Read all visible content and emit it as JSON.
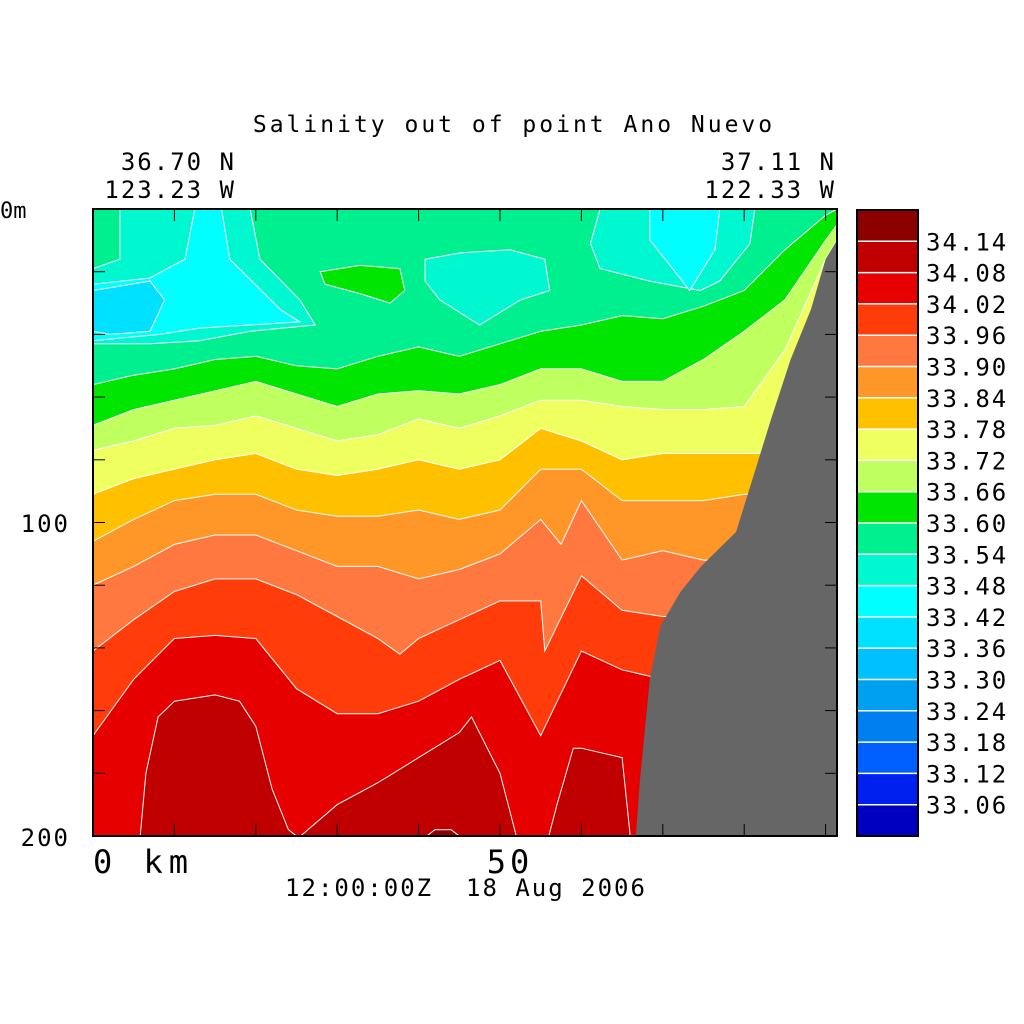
{
  "chart_data": {
    "type": "heatmap",
    "subtype": "filled-contour section",
    "title": "Salinity out of point Ano Nuevo",
    "start_location": {
      "lat": "36.70 N",
      "lon": "123.23 W"
    },
    "end_location": {
      "lat": "37.11 N",
      "lon": "122.33 W"
    },
    "timestamp": "12:00:00Z  18 Aug 2006",
    "xlabel": "km",
    "x_tick_labels": [
      {
        "value": 0,
        "label": "0 km"
      },
      {
        "value": 50,
        "label": "50"
      }
    ],
    "y_tick_labels": [
      {
        "value": 0,
        "label": "0m"
      },
      {
        "value": 100,
        "label": "100"
      },
      {
        "value": 200,
        "label": "200"
      }
    ],
    "xlim": [
      0,
      91.4
    ],
    "ylim": [
      0,
      200
    ],
    "y_inverted": true,
    "x_minor_step": 10,
    "y_minor_step": 20,
    "levels": [
      "34.14",
      "34.08",
      "34.02",
      "33.96",
      "33.90",
      "33.84",
      "33.78",
      "33.72",
      "33.66",
      "33.60",
      "33.54",
      "33.48",
      "33.42",
      "33.36",
      "33.30",
      "33.24",
      "33.18",
      "33.12",
      "33.06"
    ],
    "colors": [
      "#8c0000",
      "#c00000",
      "#e60000",
      "#ff3c0a",
      "#ff7840",
      "#ff9628",
      "#ffc000",
      "#f0ff60",
      "#c0ff60",
      "#00e600",
      "#00f090",
      "#00f8d0",
      "#00ffff",
      "#00e0ff",
      "#00c0ff",
      "#00a0f0",
      "#0080f0",
      "#0060ff",
      "#0020f0",
      "#0000c0"
    ],
    "surface_fill": "33.54",
    "boundaries": [
      {
        "level": "33.60",
        "color": "#00e600",
        "points": [
          [
            0,
            56
          ],
          [
            5,
            53
          ],
          [
            10,
            51
          ],
          [
            15,
            48
          ],
          [
            20,
            47
          ],
          [
            25,
            50
          ],
          [
            30,
            51
          ],
          [
            35,
            47
          ],
          [
            40,
            44
          ],
          [
            45,
            47
          ],
          [
            50,
            43
          ],
          [
            55,
            39
          ],
          [
            60,
            37
          ],
          [
            65,
            34
          ],
          [
            70,
            35
          ],
          [
            75,
            31
          ],
          [
            80,
            26
          ],
          [
            85,
            13
          ],
          [
            90,
            2
          ],
          [
            91.4,
            0
          ]
        ]
      },
      {
        "level": "33.66",
        "color": "#c0ff60",
        "points": [
          [
            0,
            69
          ],
          [
            5,
            64
          ],
          [
            10,
            61
          ],
          [
            15,
            58
          ],
          [
            20,
            55
          ],
          [
            25,
            59
          ],
          [
            30,
            63
          ],
          [
            35,
            59
          ],
          [
            40,
            58
          ],
          [
            45,
            59
          ],
          [
            50,
            56
          ],
          [
            55,
            51
          ],
          [
            60,
            51
          ],
          [
            65,
            55
          ],
          [
            70,
            55
          ],
          [
            75,
            48
          ],
          [
            80,
            39
          ],
          [
            85,
            29
          ],
          [
            90,
            10
          ],
          [
            91.4,
            5
          ]
        ]
      },
      {
        "level": "33.72",
        "color": "#f0ff60",
        "points": [
          [
            0,
            77
          ],
          [
            5,
            74
          ],
          [
            10,
            70
          ],
          [
            15,
            69
          ],
          [
            20,
            66
          ],
          [
            25,
            70
          ],
          [
            30,
            74
          ],
          [
            35,
            72
          ],
          [
            40,
            67
          ],
          [
            45,
            70
          ],
          [
            50,
            66
          ],
          [
            55,
            61
          ],
          [
            60,
            61
          ],
          [
            65,
            63
          ],
          [
            70,
            64
          ],
          [
            75,
            64
          ],
          [
            80,
            63
          ],
          [
            85,
            45
          ],
          [
            90,
            16
          ],
          [
            91.4,
            10
          ]
        ]
      },
      {
        "level": "33.78",
        "color": "#ffc000",
        "points": [
          [
            0,
            91
          ],
          [
            5,
            86
          ],
          [
            10,
            83
          ],
          [
            15,
            80
          ],
          [
            20,
            78
          ],
          [
            25,
            83
          ],
          [
            30,
            85
          ],
          [
            35,
            83
          ],
          [
            40,
            80
          ],
          [
            45,
            83
          ],
          [
            50,
            80
          ],
          [
            55,
            70
          ],
          [
            60,
            74
          ],
          [
            65,
            80
          ],
          [
            70,
            78
          ],
          [
            75,
            78
          ],
          [
            80,
            78
          ],
          [
            85,
            78
          ],
          [
            91.4,
            78
          ]
        ]
      },
      {
        "level": "33.84",
        "color": "#ff9628",
        "points": [
          [
            0,
            106
          ],
          [
            5,
            99
          ],
          [
            10,
            93
          ],
          [
            15,
            91
          ],
          [
            20,
            91
          ],
          [
            25,
            96
          ],
          [
            30,
            98
          ],
          [
            35,
            98
          ],
          [
            40,
            96
          ],
          [
            45,
            99
          ],
          [
            50,
            96
          ],
          [
            55,
            83
          ],
          [
            60,
            83
          ],
          [
            65,
            93
          ],
          [
            70,
            93
          ],
          [
            75,
            93
          ],
          [
            80,
            91
          ],
          [
            91.4,
            91
          ]
        ]
      },
      {
        "level": "33.90",
        "color": "#ff7840",
        "points": [
          [
            0,
            120
          ],
          [
            5,
            114
          ],
          [
            10,
            107
          ],
          [
            15,
            104
          ],
          [
            20,
            104
          ],
          [
            25,
            109
          ],
          [
            30,
            114
          ],
          [
            35,
            114
          ],
          [
            40,
            118
          ],
          [
            45,
            115
          ],
          [
            50,
            110
          ],
          [
            55,
            99
          ],
          [
            57.5,
            107
          ],
          [
            60,
            93
          ],
          [
            65,
            112
          ],
          [
            70,
            109
          ],
          [
            75,
            112
          ],
          [
            91.4,
            112
          ]
        ]
      },
      {
        "level": "33.96",
        "color": "#ff3c0a",
        "points": [
          [
            0,
            141
          ],
          [
            5,
            131
          ],
          [
            10,
            122
          ],
          [
            15,
            118
          ],
          [
            20,
            118
          ],
          [
            25,
            123
          ],
          [
            30,
            130
          ],
          [
            35,
            137
          ],
          [
            37.7,
            142
          ],
          [
            40,
            137
          ],
          [
            45,
            131
          ],
          [
            50,
            125
          ],
          [
            55,
            125
          ],
          [
            55.5,
            141
          ],
          [
            60,
            117
          ],
          [
            65,
            128
          ],
          [
            70,
            130
          ],
          [
            91.4,
            130
          ]
        ]
      },
      {
        "level": "34.02",
        "color": "#e60000",
        "points": [
          [
            0,
            168
          ],
          [
            5,
            150
          ],
          [
            10,
            137
          ],
          [
            15,
            136
          ],
          [
            20,
            137
          ],
          [
            25,
            153
          ],
          [
            30,
            161
          ],
          [
            35,
            161
          ],
          [
            40,
            157
          ],
          [
            45,
            150
          ],
          [
            50,
            144
          ],
          [
            55,
            168
          ],
          [
            60,
            141
          ],
          [
            65,
            147
          ],
          [
            70,
            150
          ],
          [
            91.4,
            150
          ]
        ]
      }
    ],
    "patches": [
      {
        "level": "33.48",
        "color": "#00f8d0",
        "points": [
          [
            3.3,
            0
          ],
          [
            19.3,
            0
          ],
          [
            20.5,
            16
          ],
          [
            25.4,
            29
          ],
          [
            27.3,
            37
          ],
          [
            19.3,
            39
          ],
          [
            13.1,
            42
          ],
          [
            7,
            43
          ],
          [
            0,
            43
          ],
          [
            0,
            19
          ],
          [
            3.3,
            16
          ]
        ]
      },
      {
        "level": "33.42",
        "color": "#00ffff",
        "points": [
          [
            12.5,
            0
          ],
          [
            15.8,
            0
          ],
          [
            16.8,
            16
          ],
          [
            23,
            32
          ],
          [
            25.4,
            36
          ],
          [
            13.1,
            38
          ],
          [
            8.2,
            40
          ],
          [
            0,
            42
          ],
          [
            0,
            24
          ],
          [
            7,
            22
          ],
          [
            11.3,
            16
          ]
        ]
      },
      {
        "level": "33.36",
        "color": "#00e0ff",
        "points": [
          [
            0,
            26
          ],
          [
            7,
            23
          ],
          [
            8.8,
            29
          ],
          [
            7,
            39
          ],
          [
            2.1,
            40
          ],
          [
            0,
            39
          ]
        ]
      },
      {
        "level": "33.48",
        "color": "#00f8d0",
        "points": [
          [
            40.8,
            16
          ],
          [
            45.1,
            14
          ],
          [
            51.2,
            13
          ],
          [
            55.5,
            16
          ],
          [
            56.1,
            26
          ],
          [
            52.5,
            29
          ],
          [
            47.5,
            37
          ],
          [
            42.6,
            29
          ],
          [
            40.8,
            23
          ]
        ]
      },
      {
        "level": "33.48",
        "color": "#00f8d0",
        "points": [
          [
            62.3,
            0
          ],
          [
            81.3,
            0
          ],
          [
            80.7,
            11
          ],
          [
            77,
            23
          ],
          [
            74.6,
            26
          ],
          [
            68.4,
            23
          ],
          [
            62.3,
            19
          ],
          [
            61.1,
            11
          ]
        ]
      },
      {
        "level": "33.42",
        "color": "#00ffff",
        "points": [
          [
            68.4,
            0
          ],
          [
            77,
            0
          ],
          [
            76.4,
            13
          ],
          [
            73.3,
            26
          ],
          [
            70.3,
            16
          ],
          [
            68.4,
            10
          ]
        ]
      },
      {
        "level": "33.60",
        "color": "#00e600",
        "points": [
          [
            27.9,
            20
          ],
          [
            32.8,
            18
          ],
          [
            37.7,
            19
          ],
          [
            38.3,
            26
          ],
          [
            36.5,
            30
          ],
          [
            32.8,
            27
          ],
          [
            28.5,
            24
          ]
        ]
      },
      {
        "level": "34.08",
        "color": "#c00000",
        "points": [
          [
            5.8,
            200
          ],
          [
            6.5,
            180
          ],
          [
            8,
            162
          ],
          [
            10,
            157
          ],
          [
            15,
            155
          ],
          [
            18,
            157
          ],
          [
            20,
            165
          ],
          [
            22,
            185
          ],
          [
            24,
            198
          ],
          [
            25,
            200
          ]
        ]
      },
      {
        "level": "34.08",
        "color": "#c00000",
        "points": [
          [
            25.5,
            200
          ],
          [
            30,
            190
          ],
          [
            35,
            183
          ],
          [
            40,
            175
          ],
          [
            45,
            167
          ],
          [
            46.5,
            162
          ],
          [
            50,
            180
          ],
          [
            52,
            200
          ]
        ]
      },
      {
        "level": "34.08",
        "color": "#c00000",
        "points": [
          [
            56,
            200
          ],
          [
            57,
            190
          ],
          [
            59,
            172
          ],
          [
            60,
            172
          ],
          [
            65,
            175
          ],
          [
            66,
            200
          ]
        ]
      },
      {
        "level": "34.14",
        "color": "#8c0000",
        "points": [
          [
            41,
            200
          ],
          [
            42,
            198
          ],
          [
            44,
            198
          ],
          [
            45,
            200
          ]
        ]
      }
    ],
    "bathymetry": {
      "color": "#666666",
      "points": [
        [
          91.4,
          10
        ],
        [
          90,
          16
        ],
        [
          88.2,
          32
        ],
        [
          85.7,
          48
        ],
        [
          83.3,
          67
        ],
        [
          80.2,
          93
        ],
        [
          79,
          103
        ],
        [
          74.7,
          114
        ],
        [
          72.2,
          122
        ],
        [
          69.7,
          133
        ],
        [
          68.4,
          150
        ],
        [
          67.2,
          182
        ],
        [
          66.7,
          200
        ],
        [
          91.4,
          200
        ]
      ]
    }
  }
}
